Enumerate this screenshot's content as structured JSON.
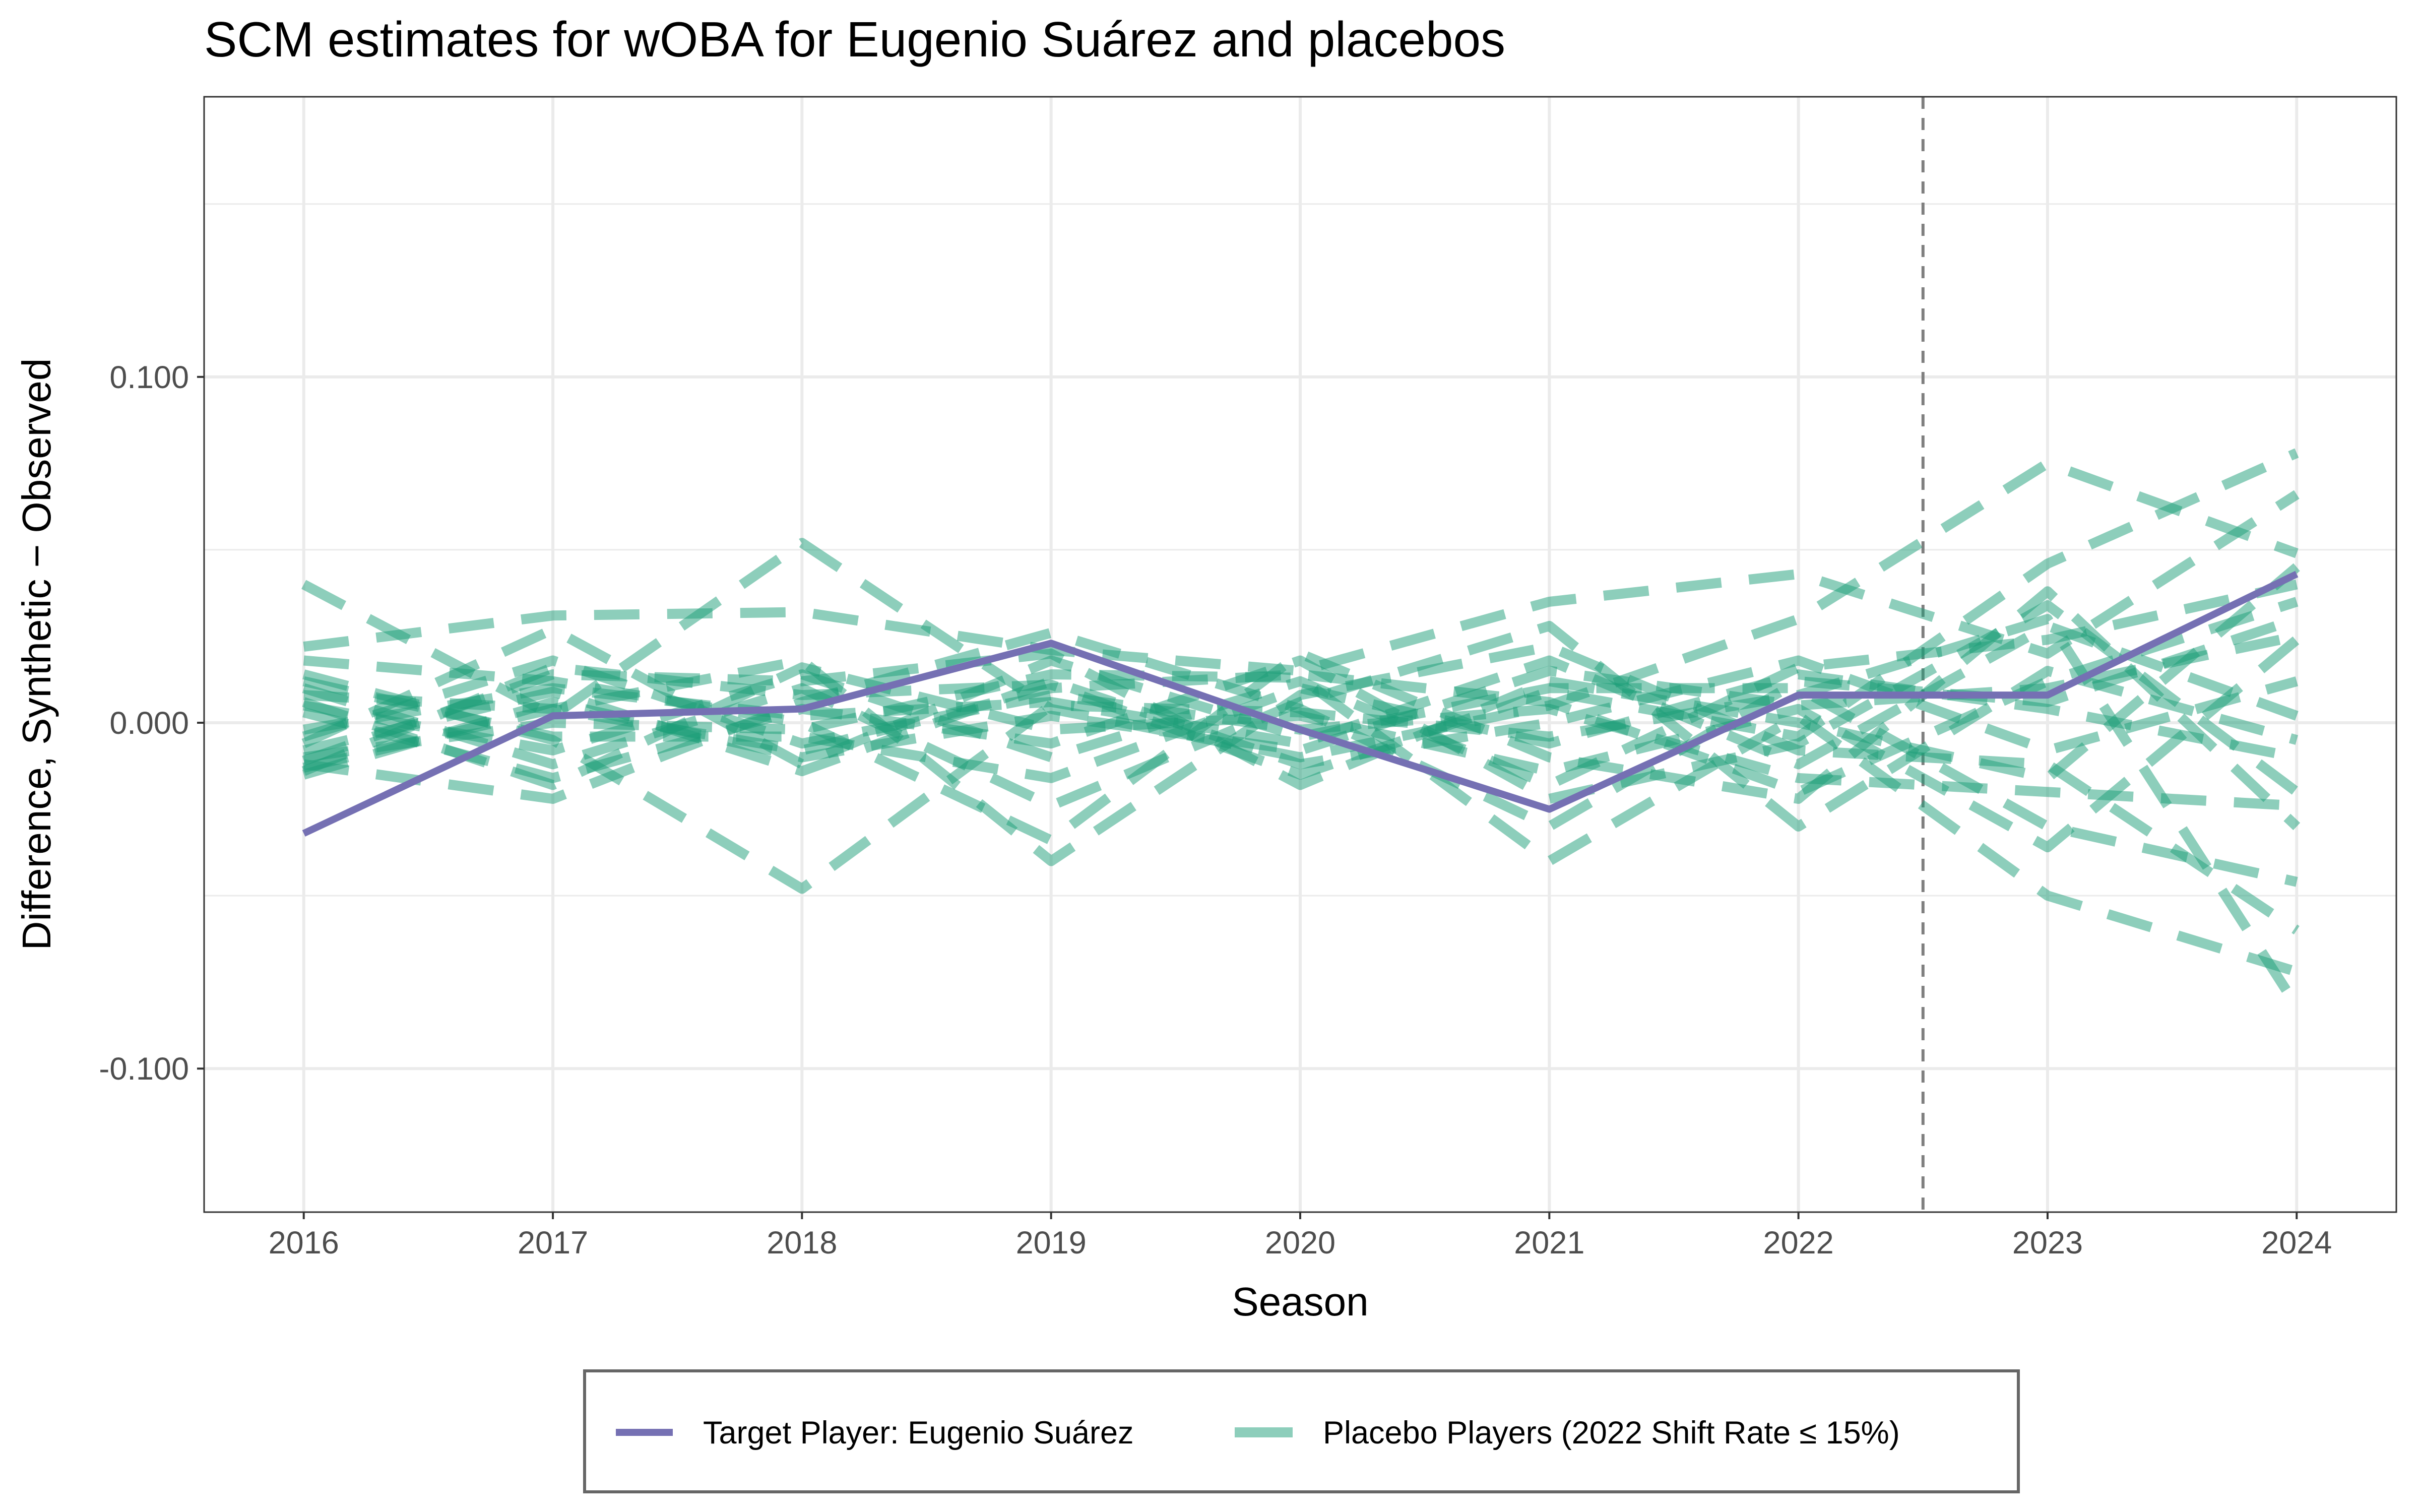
{
  "chart_data": {
    "type": "line",
    "title": "SCM estimates for wOBA for Eugenio Suárez and placebos",
    "xlabel": "Season",
    "ylabel": "Difference, Synthetic − Observed",
    "x": [
      2016,
      2017,
      2018,
      2019,
      2020,
      2021,
      2022,
      2023,
      2024
    ],
    "x_ticks": [
      "2016",
      "2017",
      "2018",
      "2019",
      "2020",
      "2021",
      "2022",
      "2023",
      "2024"
    ],
    "y_ticks": [
      -0.1,
      0.0,
      0.1
    ],
    "y_tick_labels": [
      "-0.100",
      "0.000",
      "0.100"
    ],
    "xlim": [
      2015.6,
      2024.4
    ],
    "ylim": [
      -0.1415,
      0.181
    ],
    "grid": true,
    "vline": {
      "x": 2022.5,
      "style": "dashed",
      "color": "#7f7f7f"
    },
    "legend_position": "bottom",
    "colors": {
      "target": "#7570b3",
      "placebo": "#1b9e77",
      "vline": "#7f7f7f",
      "grid": "#ebebeb"
    },
    "target": {
      "name": "Target Player: Eugenio Suárez",
      "values": [
        -0.032,
        0.002,
        0.004,
        0.023,
        -0.002,
        -0.025,
        0.008,
        0.008,
        0.043
      ]
    },
    "placebo_label": "Placebo Players (2022 Shift Rate ≤ 15%)",
    "placebos": [
      [
        0.04,
        0.002,
        0.052,
        0.004,
        -0.01,
        0.005,
        0.03,
        0.075,
        0.049
      ],
      [
        0.022,
        0.031,
        0.032,
        0.021,
        0.015,
        0.035,
        0.043,
        0.02,
        0.066
      ],
      [
        -0.014,
        0.016,
        0.008,
        0.011,
        -0.015,
        0.009,
        -0.004,
        0.046,
        0.078
      ],
      [
        0.014,
        -0.005,
        -0.048,
        0.005,
        0.003,
        -0.004,
        0.008,
        0.03,
        -0.082
      ],
      [
        -0.01,
        0.0,
        -0.002,
        0.014,
        0.013,
        -0.04,
        0.002,
        -0.05,
        -0.072
      ],
      [
        0.008,
        0.004,
        0.018,
        -0.04,
        0.008,
        0.022,
        -0.008,
        -0.012,
        -0.06
      ],
      [
        -0.006,
        0.027,
        -0.012,
        0.018,
        -0.004,
        0.01,
        0.01,
        -0.03,
        -0.046
      ],
      [
        -0.012,
        -0.022,
        0.006,
        0.026,
        0.004,
        -0.03,
        0.012,
        0.006,
        0.03
      ],
      [
        0.018,
        0.012,
        0.0,
        -0.034,
        0.02,
        -0.01,
        -0.022,
        0.038,
        -0.03
      ],
      [
        -0.015,
        0.006,
        -0.01,
        0.002,
        -0.008,
        0.015,
        0.005,
        0.01,
        0.025
      ],
      [
        0.005,
        -0.008,
        0.014,
        -0.01,
        0.012,
        -0.018,
        0.016,
        0.024,
        0.04
      ],
      [
        -0.004,
        0.018,
        -0.006,
        0.008,
        -0.002,
        0.004,
        -0.016,
        -0.02,
        -0.024
      ],
      [
        0.01,
        -0.012,
        0.01,
        -0.024,
        0.006,
        0.028,
        -0.03,
        0.015,
        -0.005
      ],
      [
        -0.008,
        0.009,
        -0.014,
        0.012,
        -0.012,
        0.0,
        0.018,
        -0.008,
        0.012
      ],
      [
        0.003,
        -0.016,
        0.004,
        -0.006,
        0.018,
        -0.022,
        -0.006,
        0.034,
        -0.02
      ],
      [
        -0.011,
        0.014,
        0.012,
        0.02,
        -0.018,
        0.012,
        0.0,
        -0.016,
        0.045
      ],
      [
        0.012,
        -0.004,
        -0.004,
        -0.016,
        0.01,
        -0.006,
        0.014,
        0.004,
        -0.01
      ],
      [
        -0.002,
        0.01,
        0.002,
        0.006,
        -0.006,
        0.018,
        -0.012,
        0.028,
        0.002
      ],
      [
        0.006,
        -0.018,
        0.016,
        -0.002,
        0.002,
        -0.014,
        0.004,
        -0.036,
        0.024
      ],
      [
        -0.013,
        0.004,
        -0.008,
        0.01,
        0.014,
        0.006,
        -0.02,
        0.012,
        0.035
      ]
    ]
  }
}
